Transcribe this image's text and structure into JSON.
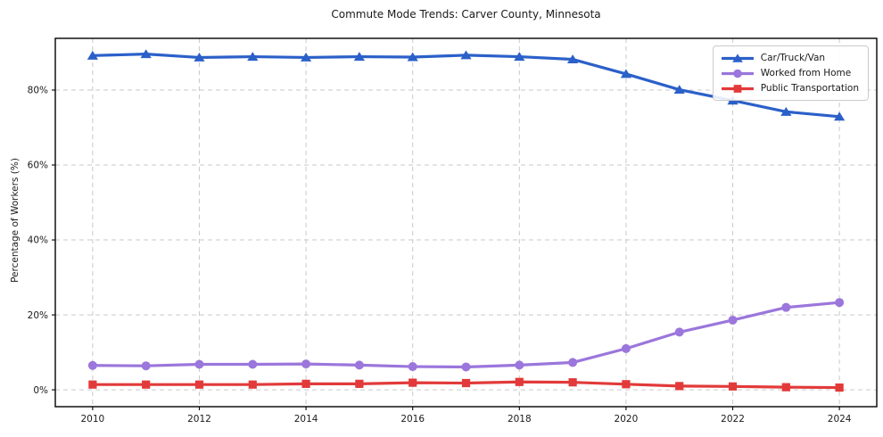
{
  "title": "Commute Mode Trends: Carver County, Minnesota",
  "chart_data": {
    "type": "line",
    "title": "Commute Mode Trends: Carver County, Minnesota",
    "xlabel": "",
    "ylabel": "Percentage of Workers (%)",
    "grid": true,
    "grid_style": "dashed",
    "legend_position": "upper right",
    "xlim": [
      2009.3,
      2024.7
    ],
    "ylim": [
      -4.5,
      93.8
    ],
    "x": [
      2010,
      2011,
      2012,
      2013,
      2014,
      2015,
      2016,
      2017,
      2018,
      2019,
      2020,
      2021,
      2022,
      2023,
      2024
    ],
    "x_ticks": [
      2010,
      2012,
      2014,
      2016,
      2018,
      2020,
      2022,
      2024
    ],
    "x_tick_labels": [
      "2010",
      "2012",
      "2014",
      "2016",
      "2018",
      "2020",
      "2022",
      "2024"
    ],
    "y_ticks": [
      0,
      20,
      40,
      60,
      80
    ],
    "y_tick_labels": [
      "0%",
      "20%",
      "40%",
      "60%",
      "80%"
    ],
    "series": [
      {
        "name": "Car/Truck/Van",
        "color": "#2b60c9",
        "marker": "triangle",
        "values": [
          89.2,
          89.6,
          88.7,
          88.9,
          88.7,
          88.9,
          88.8,
          89.3,
          88.9,
          88.2,
          84.3,
          80.1,
          77.2,
          74.2,
          72.9
        ]
      },
      {
        "name": "Worked from Home",
        "color": "#9b76dc",
        "marker": "circle",
        "values": [
          6.5,
          6.4,
          6.8,
          6.8,
          6.9,
          6.6,
          6.2,
          6.1,
          6.6,
          7.3,
          11.0,
          15.4,
          18.6,
          22.0,
          23.3
        ]
      },
      {
        "name": "Public Transportation",
        "color": "#e23a3a",
        "marker": "square",
        "values": [
          1.4,
          1.4,
          1.4,
          1.4,
          1.6,
          1.6,
          1.9,
          1.8,
          2.1,
          2.0,
          1.5,
          1.0,
          0.9,
          0.7,
          0.6
        ]
      }
    ],
    "colors": {
      "grid": "#c9c9c9",
      "spine": "#000000",
      "text": "#1a1a1a",
      "background": "#ffffff"
    }
  }
}
